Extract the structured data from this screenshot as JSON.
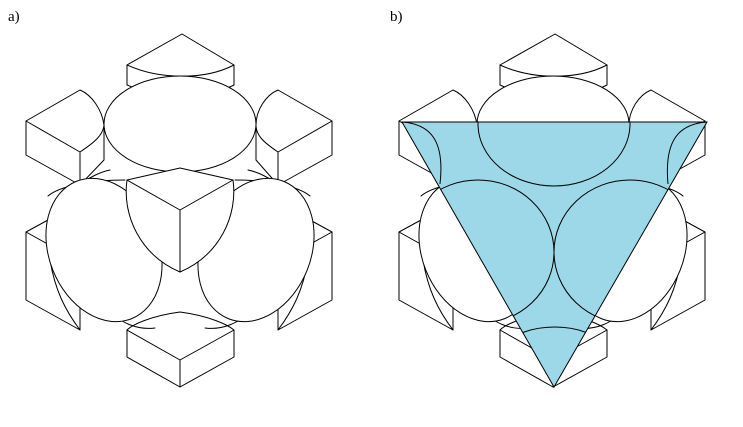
{
  "panels": [
    {
      "label": "a)",
      "highlighted_plane": false
    },
    {
      "label": "b)",
      "highlighted_plane": true
    }
  ],
  "colors": {
    "line": "#000000",
    "background": "#ffffff",
    "plane_fill": "#9dd8e8"
  }
}
